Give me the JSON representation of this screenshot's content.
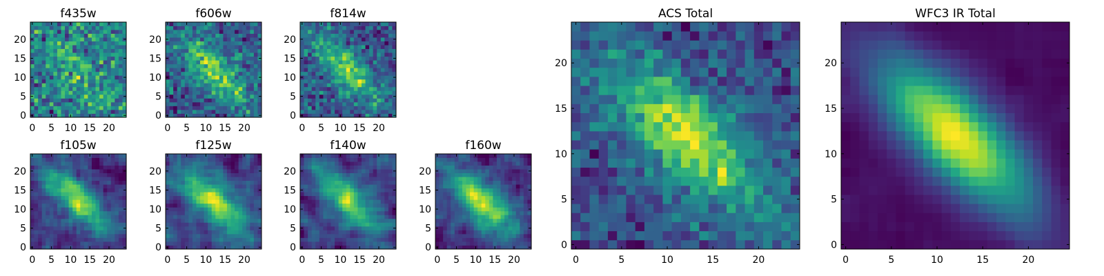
{
  "chart_data": [
    {
      "type": "heatmap",
      "title": "f435w",
      "seed": 11,
      "pattern": "noise",
      "xticks": [
        "0",
        "5",
        "10",
        "15",
        "20"
      ],
      "yticks": [
        "0",
        "5",
        "10",
        "15",
        "20"
      ],
      "grid_size": 25,
      "xlim": [
        0,
        24
      ],
      "ylim": [
        0,
        24
      ],
      "colormap": "viridis"
    },
    {
      "type": "heatmap",
      "title": "f606w",
      "seed": 23,
      "pattern": "weak",
      "xticks": [
        "0",
        "5",
        "10",
        "15",
        "20"
      ],
      "yticks": [
        "0",
        "5",
        "10",
        "15",
        "20"
      ],
      "grid_size": 25,
      "xlim": [
        0,
        24
      ],
      "ylim": [
        0,
        24
      ],
      "colormap": "viridis"
    },
    {
      "type": "heatmap",
      "title": "f814w",
      "seed": 37,
      "pattern": "weak",
      "xticks": [
        "0",
        "5",
        "10",
        "15",
        "20"
      ],
      "yticks": [
        "0",
        "5",
        "10",
        "15",
        "20"
      ],
      "grid_size": 25,
      "xlim": [
        0,
        24
      ],
      "ylim": [
        0,
        24
      ],
      "colormap": "viridis"
    },
    {
      "type": "heatmap",
      "title": "f105w",
      "seed": 41,
      "pattern": "smooth",
      "xticks": [
        "0",
        "5",
        "10",
        "15",
        "20"
      ],
      "yticks": [
        "0",
        "5",
        "10",
        "15",
        "20"
      ],
      "grid_size": 25,
      "xlim": [
        0,
        24
      ],
      "ylim": [
        0,
        24
      ],
      "colormap": "viridis"
    },
    {
      "type": "heatmap",
      "title": "f125w",
      "seed": 53,
      "pattern": "smooth",
      "xticks": [
        "0",
        "5",
        "10",
        "15",
        "20"
      ],
      "yticks": [
        "0",
        "5",
        "10",
        "15",
        "20"
      ],
      "grid_size": 25,
      "xlim": [
        0,
        24
      ],
      "ylim": [
        0,
        24
      ],
      "colormap": "viridis"
    },
    {
      "type": "heatmap",
      "title": "f140w",
      "seed": 67,
      "pattern": "smooth",
      "xticks": [
        "0",
        "5",
        "10",
        "15",
        "20"
      ],
      "yticks": [
        "0",
        "5",
        "10",
        "15",
        "20"
      ],
      "grid_size": 25,
      "xlim": [
        0,
        24
      ],
      "ylim": [
        0,
        24
      ],
      "colormap": "viridis"
    },
    {
      "type": "heatmap",
      "title": "f160w",
      "seed": 79,
      "pattern": "smooth",
      "xticks": [
        "0",
        "5",
        "10",
        "15",
        "20"
      ],
      "yticks": [
        "0",
        "5",
        "10",
        "15",
        "20"
      ],
      "grid_size": 25,
      "xlim": [
        0,
        24
      ],
      "ylim": [
        0,
        24
      ],
      "colormap": "viridis"
    },
    {
      "type": "heatmap",
      "title": "ACS Total",
      "seed": 97,
      "pattern": "acs",
      "xticks": [
        "0",
        "5",
        "10",
        "15",
        "20"
      ],
      "yticks": [
        "0",
        "5",
        "10",
        "15",
        "20"
      ],
      "grid_size": 25,
      "xlim": [
        0,
        24
      ],
      "ylim": [
        0,
        24
      ],
      "colormap": "viridis"
    },
    {
      "type": "heatmap",
      "title": "WFC3 IR Total",
      "seed": 131,
      "pattern": "wfc3",
      "xticks": [
        "0",
        "5",
        "10",
        "15",
        "20"
      ],
      "yticks": [
        "0",
        "5",
        "10",
        "15",
        "20"
      ],
      "grid_size": 25,
      "xlim": [
        0,
        24
      ],
      "ylim": [
        0,
        24
      ],
      "colormap": "viridis"
    }
  ]
}
